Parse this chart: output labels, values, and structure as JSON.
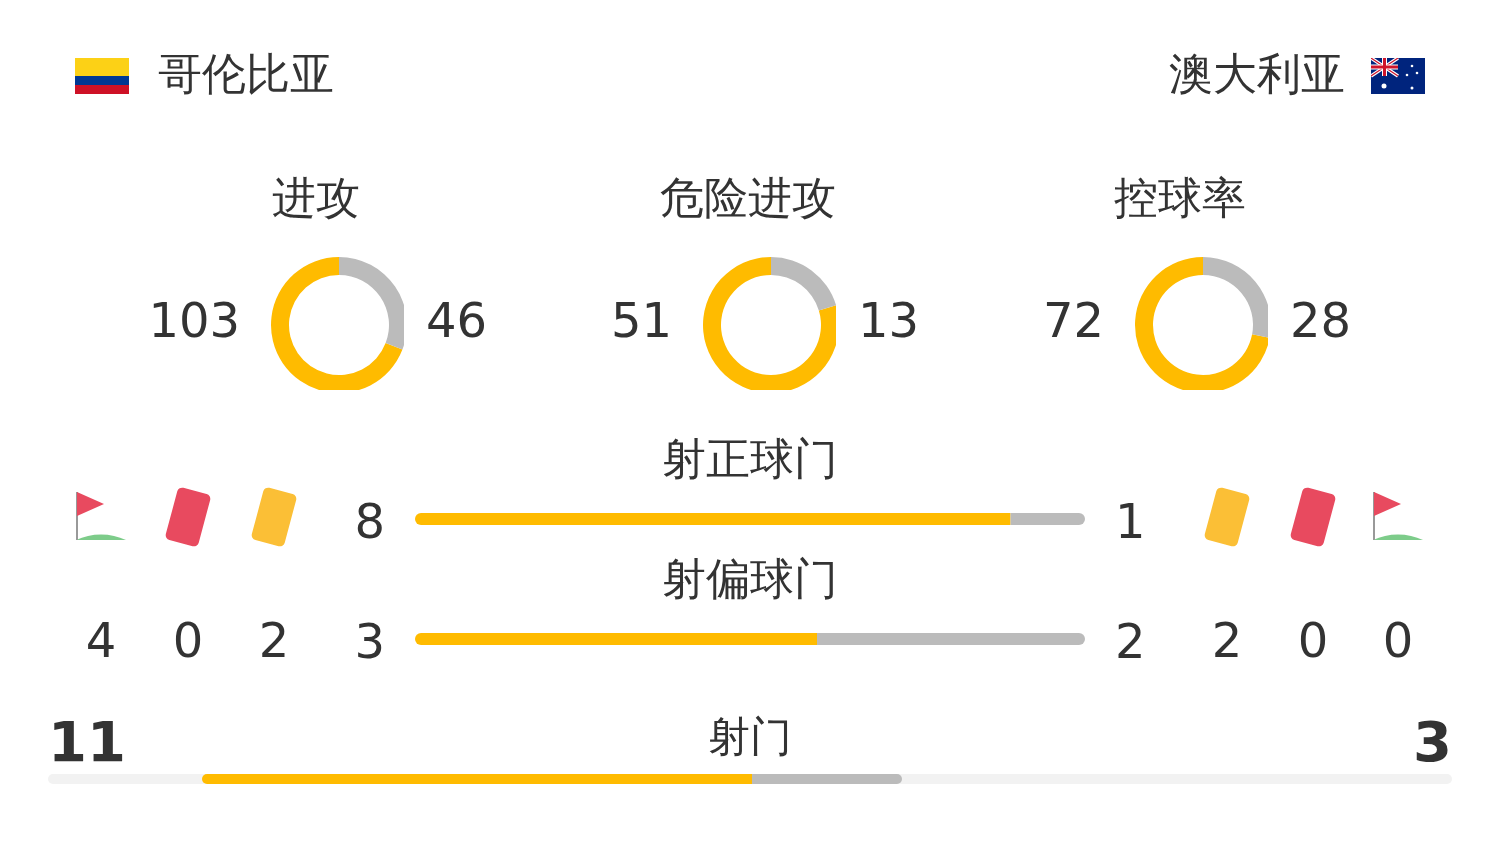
{
  "chart_data": [
    {
      "type": "other",
      "categories": [
        "哥伦比亚",
        "澳大利亚"
      ]
    },
    {
      "type": "donut",
      "title": "进攻",
      "categories": [
        null,
        null
      ],
      "values": [
        103,
        46
      ],
      "colors": [
        "#ffbb00",
        "#bbbbbb"
      ],
      "data_labels": true
    },
    {
      "type": "donut",
      "title": "危险进攻",
      "categories": [
        null,
        null
      ],
      "values": [
        51,
        13
      ],
      "colors": [
        "#ffbb00",
        "#bbbbbb"
      ],
      "data_labels": true
    },
    {
      "type": "donut",
      "title": "控球率",
      "categories": [
        null,
        null
      ],
      "values": [
        72,
        28
      ],
      "colors": [
        "#ffbb00",
        "#bbbbbb"
      ],
      "data_labels": true
    },
    {
      "type": "bar",
      "orientation": "horizontal",
      "stacked": true,
      "title": "射正球门",
      "categories": [
        null
      ],
      "series": [
        {
          "color": "#ffbb00",
          "values": [
            8
          ]
        },
        {
          "color": "#bbbbbb",
          "values": [
            1
          ]
        }
      ],
      "data_labels": true
    },
    {
      "type": "bar",
      "orientation": "horizontal",
      "stacked": true,
      "title": "射偏球门",
      "categories": [
        null
      ],
      "series": [
        {
          "color": "#ffbb00",
          "values": [
            3
          ]
        },
        {
          "color": "#bbbbbb",
          "values": [
            2
          ]
        }
      ],
      "data_labels": true
    },
    {
      "type": "other",
      "categories": [
        null,
        null,
        null,
        null,
        null,
        null
      ],
      "values": [
        4,
        0,
        2,
        2,
        0,
        0
      ],
      "data_labels": true
    },
    {
      "type": "bar",
      "orientation": "horizontal",
      "stacked": true,
      "title": "射门",
      "categories": [
        null
      ],
      "series": [
        {
          "color": "#ffbb00",
          "values": [
            11
          ],
          "value_labels": [
            "11"
          ]
        },
        {
          "color": "#bbbbbb",
          "values": [
            3
          ]
        }
      ],
      "annotations": [
        "3"
      ]
    }
  ]
}
